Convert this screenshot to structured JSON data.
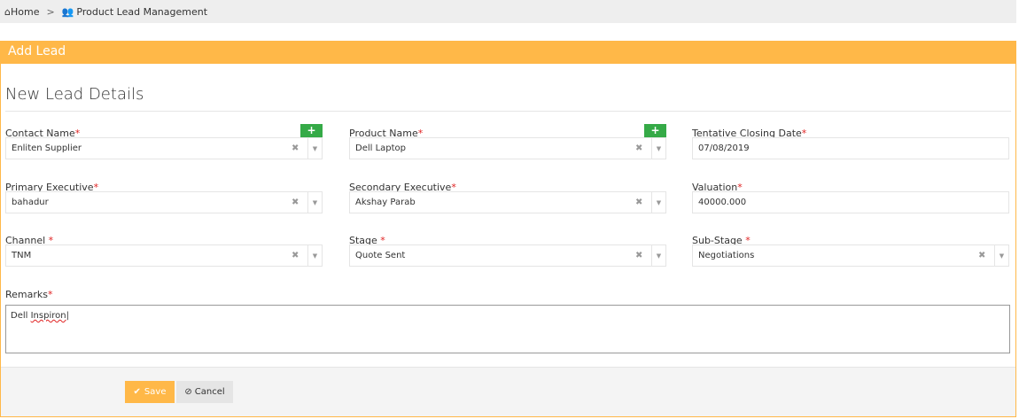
{
  "breadcrumb": {
    "home": "Home",
    "separator": ">",
    "current": "Product Lead Management"
  },
  "panel": {
    "title": "Add Lead",
    "heading": "New Lead Details"
  },
  "fields": {
    "contact": {
      "label": "Contact Name",
      "req": "*",
      "value": "Enliten Supplier",
      "add": "+"
    },
    "product": {
      "label": "Product Name",
      "req": "*",
      "value": "Dell Laptop",
      "add": "+"
    },
    "closing": {
      "label": "Tentative Closing Date",
      "req": "*",
      "value": "07/08/2019"
    },
    "primary": {
      "label": "Primary Executive",
      "req": "*",
      "value": "bahadur"
    },
    "secondary": {
      "label": "Secondary Executive",
      "req": "*",
      "value": "Akshay Parab"
    },
    "valuation": {
      "label": "Valuation",
      "req": "*",
      "value": "40000.000"
    },
    "channel": {
      "label": "Channel ",
      "req": "*",
      "value": "TNM"
    },
    "stage": {
      "label": "Stage ",
      "req": "*",
      "value": "Quote Sent"
    },
    "substage": {
      "label": "Sub-Stage ",
      "req": "*",
      "value": "Negotiations"
    },
    "remarks": {
      "label": "Remarks",
      "req": "*",
      "value_a": "Dell ",
      "value_b": "Inspiron"
    }
  },
  "buttons": {
    "save": "Save",
    "cancel": "Cancel"
  },
  "colors": {
    "accent": "#ffb848",
    "add": "#35aa47",
    "required": "#e02222"
  }
}
